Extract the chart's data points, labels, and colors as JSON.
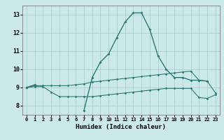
{
  "x": [
    0,
    1,
    2,
    3,
    4,
    5,
    6,
    7,
    8,
    9,
    10,
    11,
    12,
    13,
    14,
    15,
    16,
    17,
    18,
    19,
    20,
    21,
    22,
    23
  ],
  "humidex_main": [
    9.0,
    9.15,
    null,
    null,
    null,
    null,
    null,
    7.75,
    9.55,
    10.4,
    10.85,
    11.75,
    12.6,
    13.1,
    13.1,
    12.2,
    10.75,
    10.0,
    9.55,
    9.55,
    9.4,
    9.4,
    9.35,
    null
  ],
  "line_upper": [
    9.0,
    9.1,
    9.1,
    9.1,
    9.1,
    9.1,
    9.15,
    9.2,
    9.3,
    9.35,
    9.4,
    9.45,
    9.5,
    9.55,
    9.6,
    9.65,
    9.7,
    9.75,
    9.8,
    9.85,
    9.9,
    9.4,
    9.35,
    8.7
  ],
  "line_lower": [
    9.0,
    9.05,
    9.05,
    8.75,
    8.5,
    8.5,
    8.5,
    8.5,
    8.5,
    8.55,
    8.6,
    8.65,
    8.7,
    8.75,
    8.8,
    8.85,
    8.9,
    8.95,
    8.95,
    8.95,
    8.95,
    8.45,
    8.4,
    8.6
  ],
  "bg_color": "#cce9e9",
  "grid_color": "#aacfcf",
  "line_color": "#2d7a72",
  "xlabel": "Humidex (Indice chaleur)",
  "xlim": [
    -0.5,
    23.5
  ],
  "ylim": [
    7.5,
    13.5
  ],
  "yticks": [
    8,
    9,
    10,
    11,
    12,
    13
  ],
  "xticks": [
    0,
    1,
    2,
    3,
    4,
    5,
    6,
    7,
    8,
    9,
    10,
    11,
    12,
    13,
    14,
    15,
    16,
    17,
    18,
    19,
    20,
    21,
    22,
    23
  ]
}
